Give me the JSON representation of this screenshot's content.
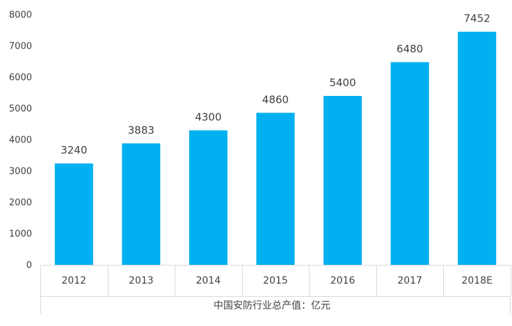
{
  "chart_data": {
    "type": "bar",
    "categories": [
      "2012",
      "2013",
      "2014",
      "2015",
      "2016",
      "2017",
      "2018E"
    ],
    "series": [
      {
        "name": "中国安防行业总产值：亿元",
        "values": [
          3240,
          3883,
          4300,
          4860,
          5400,
          6480,
          7452
        ]
      }
    ],
    "data_labels": [
      "3240",
      "3883",
      "4300",
      "4860",
      "5400",
      "6480",
      "7452"
    ],
    "y_ticks": [
      "0",
      "1000",
      "2000",
      "3000",
      "4000",
      "5000",
      "6000",
      "7000",
      "8000"
    ],
    "ylim": [
      0,
      8000
    ],
    "grid": false,
    "legend_position": "bottom",
    "bar_color": "#00B0F0",
    "axis_color": "#D9D9D9",
    "text_color": "#404040"
  }
}
